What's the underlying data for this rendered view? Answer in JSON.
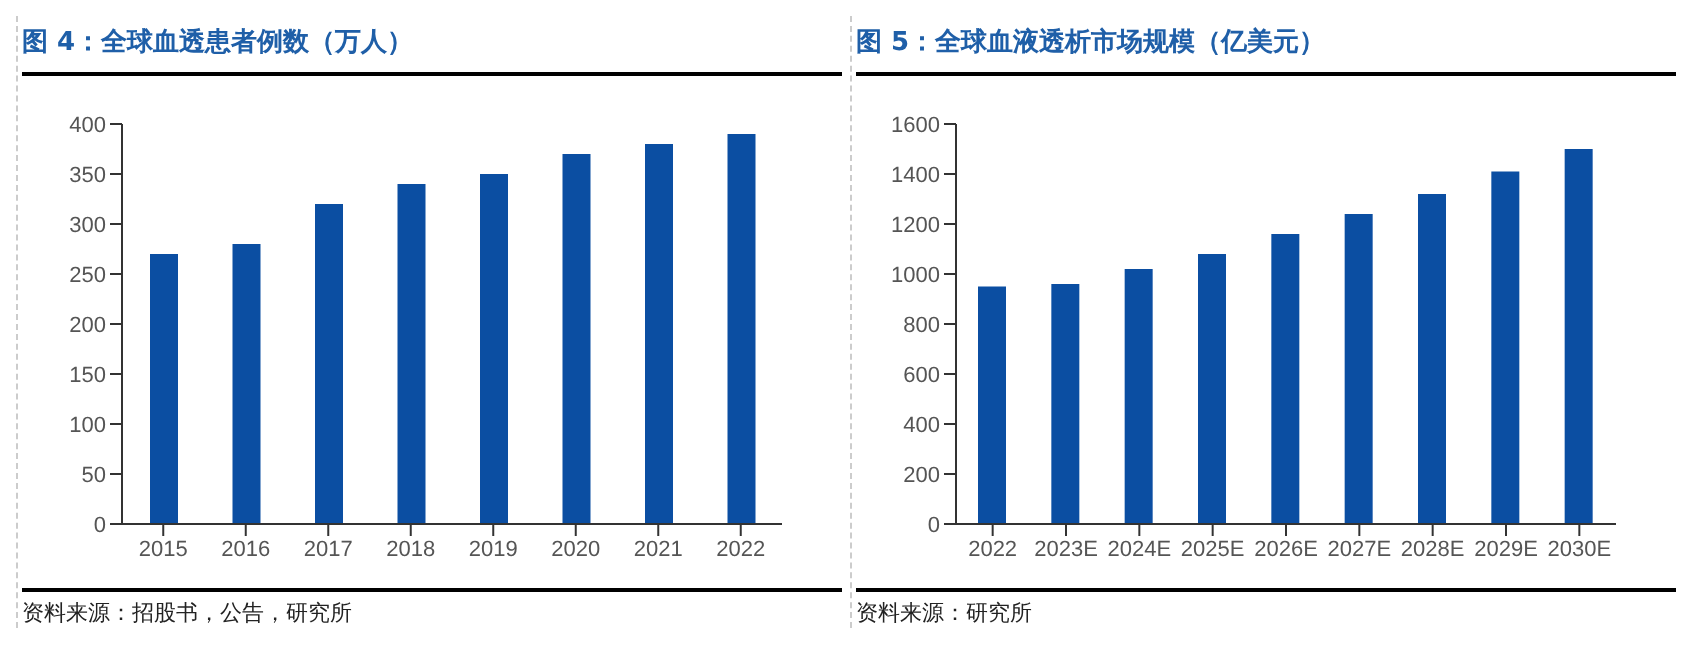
{
  "chart_data": [
    {
      "type": "bar",
      "title": "图 4：全球血透患者例数（万人）",
      "categories": [
        "2015",
        "2016",
        "2017",
        "2018",
        "2019",
        "2020",
        "2021",
        "2022"
      ],
      "values": [
        270,
        280,
        320,
        340,
        350,
        370,
        380,
        390
      ],
      "color": "#0b4ea2",
      "ylim": [
        0,
        400
      ],
      "yticks": [
        0,
        50,
        100,
        150,
        200,
        250,
        300,
        350,
        400
      ],
      "grid": false,
      "annotations": [
        "资料来源：招股书，公告，研究所"
      ]
    },
    {
      "type": "bar",
      "title": "图 5：全球血液透析市场规模（亿美元）",
      "categories": [
        "2022",
        "2023E",
        "2024E",
        "2025E",
        "2026E",
        "2027E",
        "2028E",
        "2029E",
        "2030E"
      ],
      "values": [
        950,
        960,
        1020,
        1080,
        1160,
        1240,
        1320,
        1410,
        1500
      ],
      "color": "#0b4ea2",
      "ylim": [
        0,
        1600
      ],
      "yticks": [
        0,
        200,
        400,
        600,
        800,
        1000,
        1200,
        1400,
        1600
      ],
      "grid": false,
      "annotations": [
        "资料来源：研究所"
      ]
    }
  ]
}
